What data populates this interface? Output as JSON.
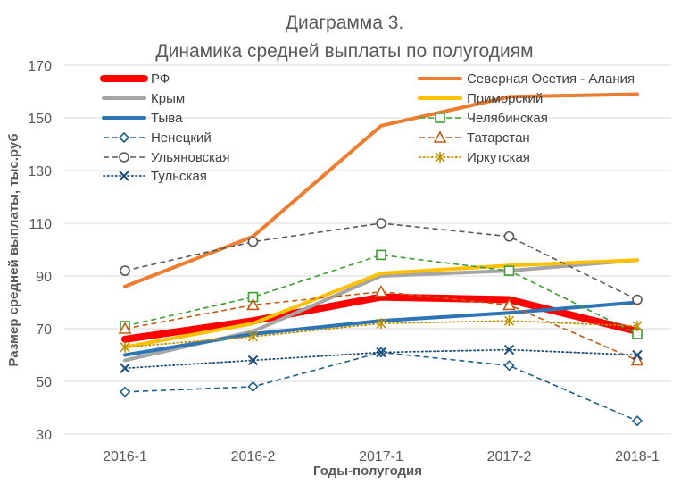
{
  "chart_data": {
    "type": "line",
    "title": "Диаграмма 3.",
    "subtitle": "Динамика средней выплаты по полугодиям",
    "xlabel": "Годы-полугодия",
    "ylabel": "Размер средней выплаты, тыс.руб",
    "categories": [
      "2016-1",
      "2016-2",
      "2017-1",
      "2017-2",
      "2018-1"
    ],
    "ylim": [
      30,
      170
    ],
    "yticks": [
      30,
      50,
      70,
      90,
      110,
      130,
      150,
      170
    ],
    "grid": true,
    "legend_position": "top",
    "series": [
      {
        "name": "РФ",
        "values": [
          66,
          73,
          82,
          81,
          69
        ],
        "color": "#ff0000",
        "style": "thick",
        "marker": "none"
      },
      {
        "name": "Северная Осетия - Алания",
        "values": [
          86,
          105,
          147,
          158,
          159
        ],
        "color": "#ed7d31",
        "style": "solid",
        "marker": "none"
      },
      {
        "name": "Крым",
        "values": [
          58,
          69,
          90,
          92,
          96
        ],
        "color": "#a5a5a5",
        "style": "solid",
        "marker": "none"
      },
      {
        "name": "Приморский",
        "values": [
          63,
          72,
          91,
          94,
          96
        ],
        "color": "#ffc000",
        "style": "solid",
        "marker": "none"
      },
      {
        "name": "Тыва",
        "values": [
          60,
          68,
          73,
          76,
          80
        ],
        "color": "#2e75b6",
        "style": "solid",
        "marker": "none"
      },
      {
        "name": "Челябинская",
        "values": [
          71,
          82,
          98,
          92,
          68
        ],
        "color": "#3ca02c",
        "style": "dashed",
        "marker": "square"
      },
      {
        "name": "Ненецкий",
        "values": [
          46,
          48,
          61,
          56,
          35
        ],
        "color": "#1f5f8b",
        "style": "dashed",
        "marker": "diamond"
      },
      {
        "name": "Татарстан",
        "values": [
          70,
          79,
          84,
          79,
          58
        ],
        "color": "#c55a11",
        "style": "dashed",
        "marker": "triangle"
      },
      {
        "name": "Ульяновская",
        "values": [
          92,
          103,
          110,
          105,
          81
        ],
        "color": "#595959",
        "style": "dashed",
        "marker": "circle"
      },
      {
        "name": "Иркутская",
        "values": [
          63,
          67,
          72,
          73,
          71
        ],
        "color": "#bf9000",
        "style": "dotted",
        "marker": "star"
      },
      {
        "name": "Тульская",
        "values": [
          55,
          58,
          61,
          62,
          60
        ],
        "color": "#1f4e79",
        "style": "dotted",
        "marker": "x"
      }
    ]
  }
}
